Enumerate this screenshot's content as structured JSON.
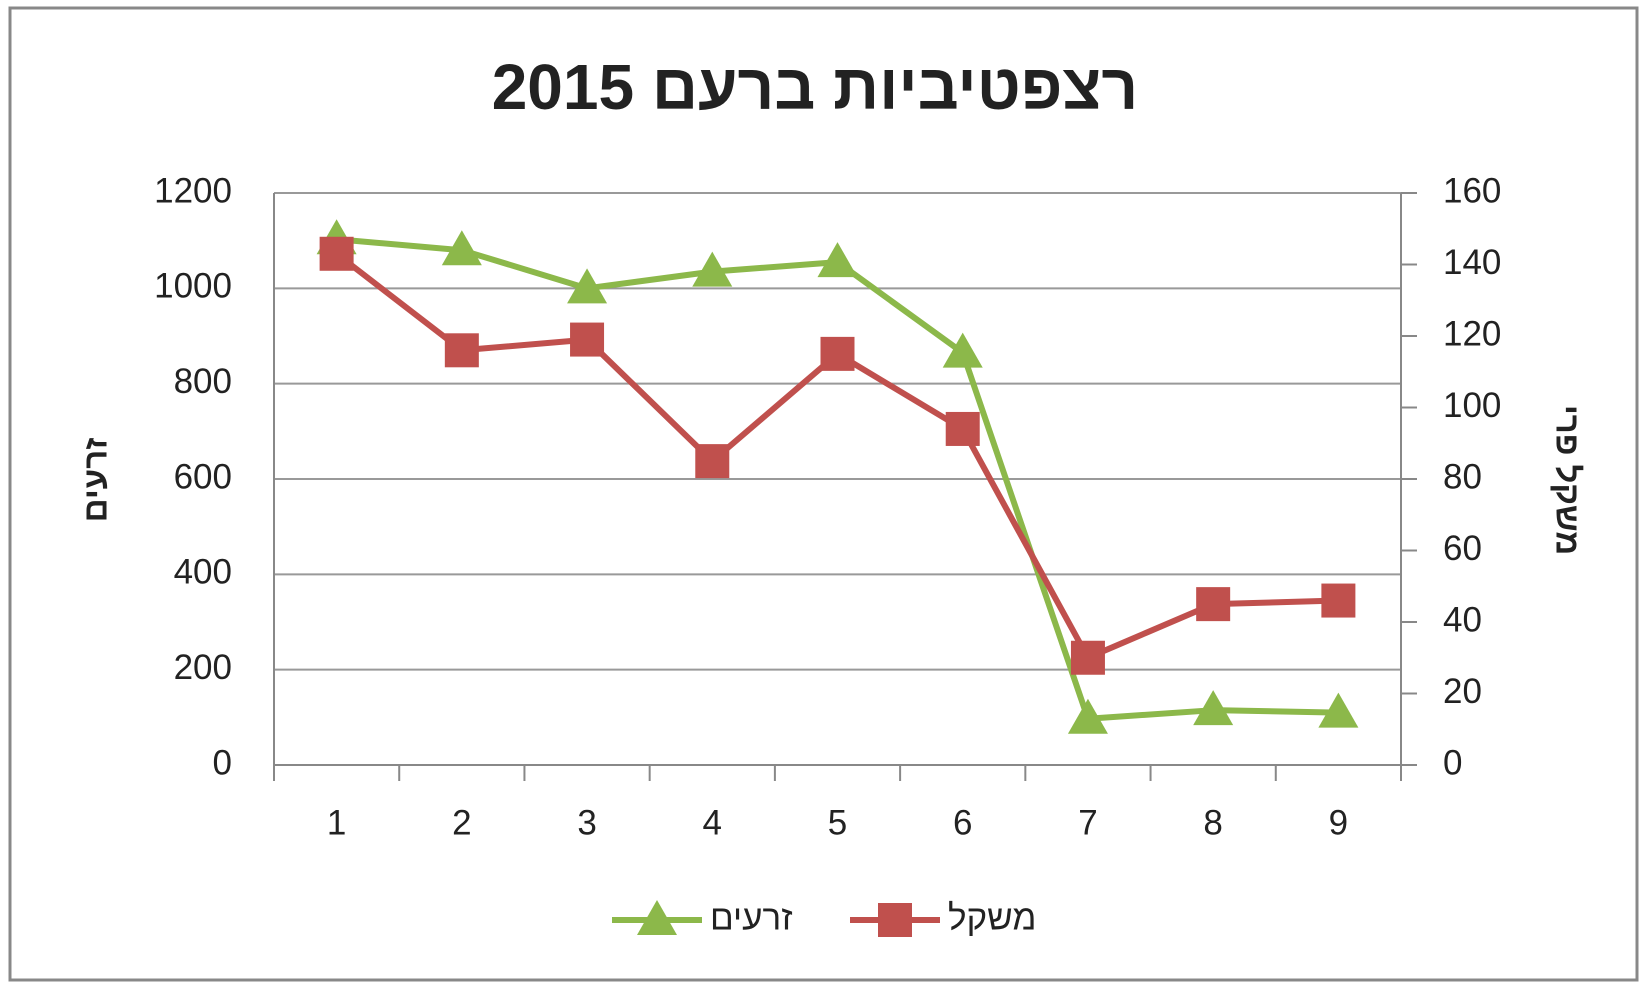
{
  "chart_data": {
    "type": "line",
    "title": "רצפטיביות ברעם 2015",
    "ylabel": "זרעים",
    "y2label": "משקל פרי",
    "categories": [
      "1",
      "2",
      "3",
      "4",
      "5",
      "6",
      "7",
      "8",
      "9"
    ],
    "series": [
      {
        "name": "זרעים",
        "color": "#8cb84a",
        "marker": "triangle",
        "axis": "y",
        "values": [
          1103,
          1080,
          1000,
          1035,
          1055,
          865,
          97,
          115,
          110
        ]
      },
      {
        "name": "משקל",
        "color": "#c0504d",
        "marker": "square",
        "axis": "y2",
        "values": [
          143,
          116,
          119,
          85,
          115,
          94,
          30,
          45,
          46
        ]
      }
    ],
    "ylim": [
      0,
      1200
    ],
    "yticks": [
      0,
      200,
      400,
      600,
      800,
      1000,
      1200
    ],
    "y2lim": [
      0,
      160
    ],
    "y2ticks": [
      0,
      20,
      40,
      60,
      80,
      100,
      120,
      140,
      160
    ],
    "grid": true
  }
}
